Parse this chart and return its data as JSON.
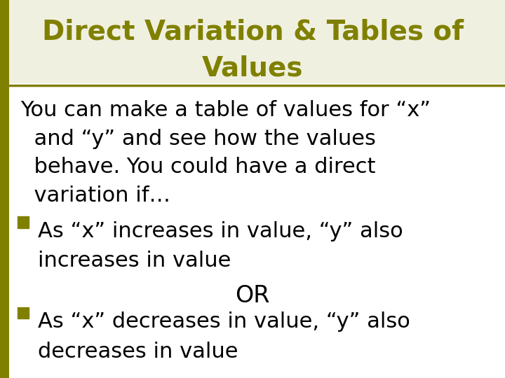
{
  "title_line1": "Direct Variation & Tables of",
  "title_line2": "Values",
  "title_color": "#808000",
  "title_fontsize": 28,
  "separator_color": "#808000",
  "background_color": "#ffffff",
  "title_bg_color": "#f0f0e0",
  "body_line1": "You can make a table of values for “x”",
  "body_line2": "  and “y” and see how the values",
  "body_line3": "  behave. You could have a direct",
  "body_line4": "  variation if…",
  "body_fontsize": 22,
  "body_color": "#000000",
  "bullet_color": "#808000",
  "bullet1_line1": "As “x” increases in value, “y” also",
  "bullet1_line2": "increases in value",
  "or_text": "OR",
  "bullet2_line1": "As “x” decreases in value, “y” also",
  "bullet2_line2": "decreases in value",
  "bullet_fontsize": 22,
  "left_bar_color": "#808000",
  "left_bar_width": 0.018
}
